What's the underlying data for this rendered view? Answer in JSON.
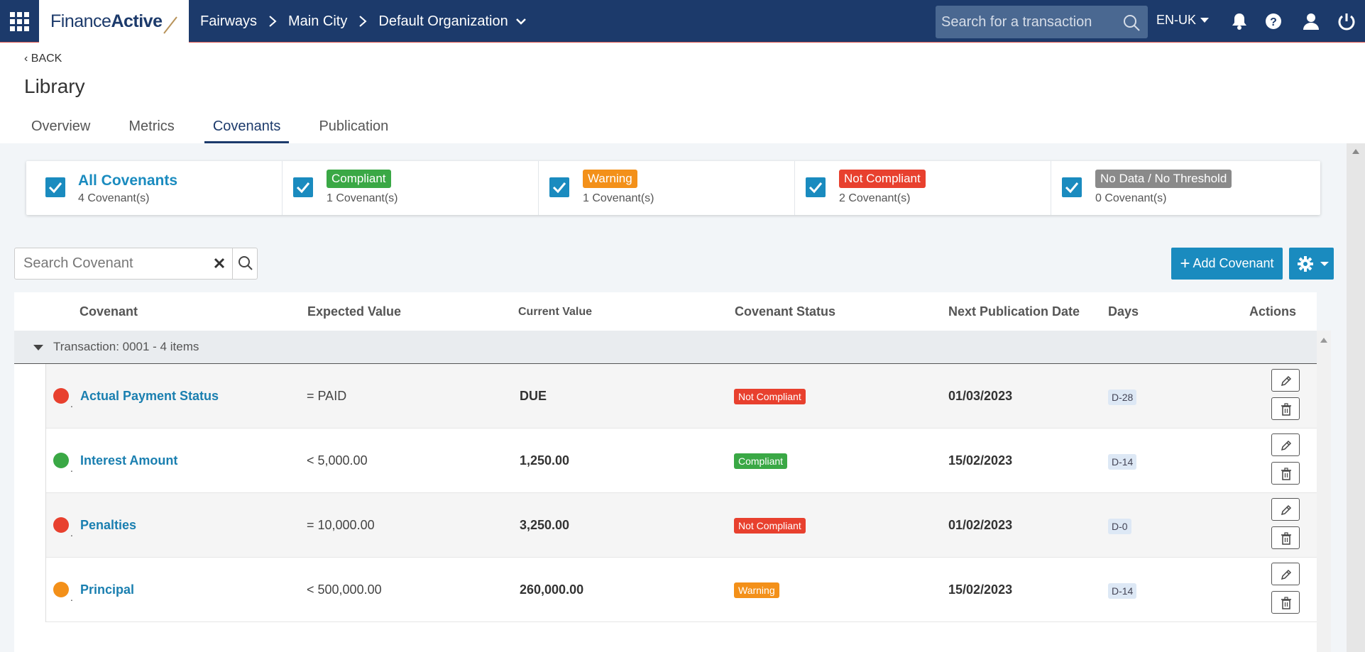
{
  "topbar": {
    "logo_regular": "Finance",
    "logo_bold": "Active",
    "breadcrumbs": [
      "Fairways",
      "Main City"
    ],
    "organization": "Default Organization",
    "search_placeholder": "Search for a transaction",
    "language": "EN-UK",
    "icons": [
      "apps-grid-icon",
      "search-icon",
      "bell-icon",
      "help-icon",
      "user-icon",
      "power-icon"
    ]
  },
  "header": {
    "back_label": "BACK",
    "title": "Library",
    "tabs": [
      {
        "label": "Overview"
      },
      {
        "label": "Metrics"
      },
      {
        "label": "Covenants"
      },
      {
        "label": "Publication"
      }
    ],
    "active_tab": "Covenants"
  },
  "filters": [
    {
      "label": "All Covenants",
      "count": "4 Covenant(s)",
      "checked": true,
      "color": ""
    },
    {
      "label": "Compliant",
      "count": "1 Covenant(s)",
      "checked": true,
      "color": "#3aa845"
    },
    {
      "label": "Warning",
      "count": "1 Covenant(s)",
      "checked": true,
      "color": "#f39019"
    },
    {
      "label": "Not Compliant",
      "count": "2 Covenant(s)",
      "checked": true,
      "color": "#e8402e"
    },
    {
      "label": "No Data / No Threshold",
      "count": "0 Covenant(s)",
      "checked": true,
      "color": "#8a8a8a"
    }
  ],
  "toolbar": {
    "search_placeholder": "Search Covenant",
    "add_label": "Add Covenant",
    "add_icon": "plus-icon",
    "settings_icon": "gear-icon"
  },
  "table": {
    "columns": [
      "Covenant",
      "Expected Value",
      "Current Value",
      "Covenant Status",
      "Next Publication Date",
      "Days",
      "Actions"
    ],
    "group_label": "Transaction: 0001 - 4 items",
    "rows": [
      {
        "name": "Actual Payment Status",
        "expected": "= PAID",
        "current": "DUE",
        "status": "Not Compliant",
        "date": "01/03/2023",
        "days": "D-28",
        "dot_color": "#e8402e",
        "status_color": "#e8402e"
      },
      {
        "name": "Interest Amount",
        "expected": "< 5,000.00",
        "current": "1,250.00",
        "status": "Compliant",
        "date": "15/02/2023",
        "days": "D-14",
        "dot_color": "#3aa845",
        "status_color": "#3aa845"
      },
      {
        "name": "Penalties",
        "expected": "= 10,000.00",
        "current": "3,250.00",
        "status": "Not Compliant",
        "date": "01/02/2023",
        "days": "D-0",
        "dot_color": "#e8402e",
        "status_color": "#e8402e"
      },
      {
        "name": "Principal",
        "expected": "< 500,000.00",
        "current": "260,000.00",
        "status": "Warning",
        "date": "15/02/2023",
        "days": "D-14",
        "dot_color": "#f39019",
        "status_color": "#f39019"
      }
    ],
    "action_icons": [
      "pencil-icon",
      "trash-icon"
    ]
  }
}
